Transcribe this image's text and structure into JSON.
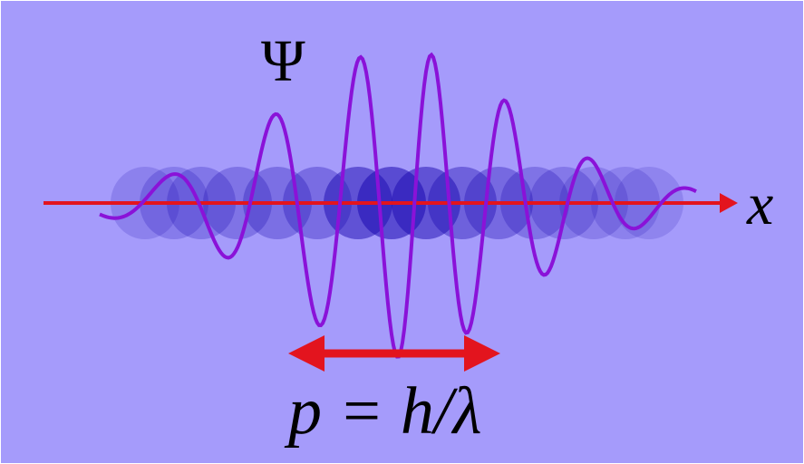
{
  "labels": {
    "wavefunction": "Ψ",
    "axis": "x",
    "equation": "p = h/λ"
  },
  "colors": {
    "background": "#a59bfb",
    "border": "#ffffff",
    "wave": "#8a12d8",
    "arrow": "#e3141e",
    "blob": "#1c0ab0"
  }
}
